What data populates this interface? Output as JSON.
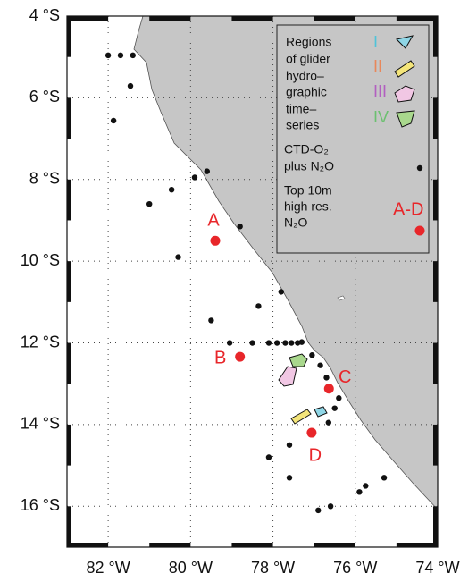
{
  "map": {
    "xlim": [
      -83,
      -74
    ],
    "ylim": [
      -17,
      -4
    ],
    "lat_ticks": [
      {
        "value": -4,
        "label": "4 °S"
      },
      {
        "value": -6,
        "label": "6 °S"
      },
      {
        "value": -8,
        "label": "8 °S"
      },
      {
        "value": -10,
        "label": "10 °S"
      },
      {
        "value": -12,
        "label": "12 °S"
      },
      {
        "value": -14,
        "label": "14 °S"
      },
      {
        "value": -16,
        "label": "16 °S"
      }
    ],
    "lon_ticks": [
      {
        "value": -82,
        "label": "82 °W"
      },
      {
        "value": -80,
        "label": "80 °W"
      },
      {
        "value": -78,
        "label": "78 °W"
      },
      {
        "value": -76,
        "label": "76 °W"
      },
      {
        "value": -74,
        "label": "74 °W"
      }
    ],
    "legend": {
      "regions_title": [
        "Regions",
        "of glider",
        "hydro–",
        "graphic",
        "time–",
        "series"
      ],
      "regions": [
        "I",
        "II",
        "III",
        "IV"
      ],
      "ctd": [
        "CTD-O₂",
        "plus N₂O"
      ],
      "top": [
        "Top 10m",
        "high res.",
        "N₂O"
      ],
      "sites_label": "A-D"
    },
    "sites": [
      {
        "label": "A",
        "lon": -79.4,
        "lat": -9.5
      },
      {
        "label": "B",
        "lon": -78.8,
        "lat": -12.34
      },
      {
        "label": "C",
        "lon": -76.64,
        "lat": -13.12
      },
      {
        "label": "D",
        "lon": -77.06,
        "lat": -14.2
      }
    ],
    "stations": [
      [
        -82.0,
        -4.96
      ],
      [
        -81.7,
        -4.96
      ],
      [
        -81.4,
        -4.96
      ],
      [
        -81.46,
        -5.71
      ],
      [
        -81.87,
        -6.56
      ],
      [
        -79.6,
        -7.8
      ],
      [
        -79.9,
        -7.95
      ],
      [
        -80.46,
        -8.25
      ],
      [
        -81.0,
        -8.6
      ],
      [
        -78.8,
        -9.15
      ],
      [
        -80.3,
        -9.9
      ],
      [
        -77.8,
        -10.75
      ],
      [
        -78.35,
        -11.1
      ],
      [
        -79.5,
        -11.45
      ],
      [
        -79.05,
        -12.0
      ],
      [
        -78.5,
        -12.0
      ],
      [
        -78.1,
        -12.0
      ],
      [
        -77.9,
        -12.0
      ],
      [
        -77.7,
        -12.0
      ],
      [
        -77.55,
        -12.0
      ],
      [
        -77.4,
        -12.0
      ],
      [
        -77.3,
        -11.98
      ],
      [
        -77.05,
        -12.3
      ],
      [
        -76.85,
        -12.55
      ],
      [
        -76.7,
        -12.85
      ],
      [
        -76.4,
        -13.35
      ],
      [
        -76.5,
        -13.6
      ],
      [
        -76.65,
        -13.95
      ],
      [
        -77.6,
        -14.5
      ],
      [
        -78.1,
        -14.8
      ],
      [
        -77.6,
        -15.3
      ],
      [
        -76.9,
        -16.1
      ],
      [
        -76.6,
        -16.0
      ],
      [
        -75.9,
        -15.65
      ],
      [
        -75.75,
        -15.5
      ],
      [
        -75.3,
        -15.3
      ]
    ]
  }
}
